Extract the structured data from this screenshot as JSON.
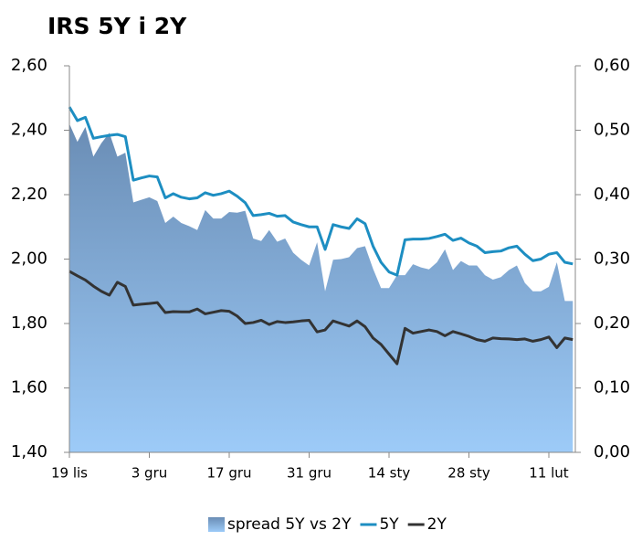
{
  "chart_data": {
    "type": "line",
    "title": "IRS 5Y i 2Y",
    "categories": [
      "19 lis",
      null,
      null,
      null,
      null,
      null,
      null,
      null,
      null,
      null,
      "3 gru",
      null,
      null,
      null,
      null,
      null,
      null,
      null,
      null,
      null,
      "17 gru",
      null,
      null,
      null,
      null,
      null,
      null,
      null,
      null,
      null,
      "31 gru",
      null,
      null,
      null,
      null,
      null,
      null,
      null,
      null,
      null,
      "14 sty",
      null,
      null,
      null,
      null,
      null,
      null,
      null,
      null,
      null,
      "28 sty",
      null,
      null,
      null,
      null,
      null,
      null,
      null,
      null,
      null,
      "11 lut",
      null,
      null,
      null
    ],
    "series": [
      {
        "name": "spread 5Y vs 2Y",
        "color": "#9dcbf8",
        "axis": "y2",
        "kind": "area",
        "values": [
          0.51,
          0.482,
          0.505,
          0.459,
          0.48,
          0.496,
          0.459,
          0.465,
          0.388,
          0.392,
          0.396,
          0.39,
          0.356,
          0.366,
          0.356,
          0.351,
          0.345,
          0.376,
          0.363,
          0.363,
          0.373,
          0.372,
          0.375,
          0.332,
          0.328,
          0.345,
          0.327,
          0.332,
          0.31,
          0.299,
          0.29,
          0.326,
          0.25,
          0.299,
          0.3,
          0.303,
          0.317,
          0.32,
          0.285,
          0.255,
          0.255,
          0.275,
          0.275,
          0.292,
          0.287,
          0.284,
          0.295,
          0.315,
          0.283,
          0.297,
          0.29,
          0.29,
          0.275,
          0.268,
          0.272,
          0.283,
          0.29,
          0.263,
          0.25,
          0.25,
          0.257,
          0.295,
          0.235,
          0.235
        ]
      },
      {
        "name": "5Y",
        "color": "#1d8ec2",
        "values": [
          2.472,
          2.43,
          2.44,
          2.375,
          2.38,
          2.384,
          2.387,
          2.38,
          2.245,
          2.252,
          2.258,
          2.255,
          2.19,
          2.203,
          2.192,
          2.187,
          2.19,
          2.206,
          2.198,
          2.203,
          2.211,
          2.195,
          2.175,
          2.135,
          2.138,
          2.142,
          2.133,
          2.135,
          2.115,
          2.107,
          2.1,
          2.1,
          2.03,
          2.107,
          2.1,
          2.095,
          2.125,
          2.11,
          2.04,
          1.99,
          1.96,
          1.95,
          2.06,
          2.062,
          2.062,
          2.064,
          2.07,
          2.077,
          2.058,
          2.065,
          2.05,
          2.04,
          2.02,
          2.023,
          2.025,
          2.035,
          2.04,
          2.015,
          1.995,
          2.0,
          2.015,
          2.02,
          1.99,
          1.985
        ]
      },
      {
        "name": "2Y",
        "color": "#333333",
        "values": [
          1.962,
          1.948,
          1.935,
          1.916,
          1.9,
          1.888,
          1.928,
          1.915,
          1.857,
          1.86,
          1.862,
          1.865,
          1.834,
          1.837,
          1.836,
          1.836,
          1.845,
          1.83,
          1.835,
          1.84,
          1.838,
          1.823,
          1.8,
          1.803,
          1.81,
          1.797,
          1.806,
          1.803,
          1.805,
          1.808,
          1.81,
          1.774,
          1.78,
          1.808,
          1.8,
          1.792,
          1.808,
          1.79,
          1.755,
          1.735,
          1.705,
          1.675,
          1.785,
          1.77,
          1.775,
          1.78,
          1.775,
          1.762,
          1.775,
          1.768,
          1.76,
          1.75,
          1.745,
          1.755,
          1.753,
          1.752,
          1.75,
          1.752,
          1.745,
          1.75,
          1.758,
          1.725,
          1.755,
          1.75
        ]
      }
    ],
    "ylim": [
      1.4,
      2.6
    ],
    "yticks": [
      {
        "value": 1.4,
        "label": "1,40"
      },
      {
        "value": 1.6,
        "label": "1,60"
      },
      {
        "value": 1.8,
        "label": "1,80"
      },
      {
        "value": 2.0,
        "label": "2,00"
      },
      {
        "value": 2.2,
        "label": "2,20"
      },
      {
        "value": 2.4,
        "label": "2,40"
      },
      {
        "value": 2.6,
        "label": "2,60"
      }
    ],
    "y2lim": [
      0,
      0.6
    ],
    "y2ticks": [
      {
        "value": 0,
        "label": "0,00"
      },
      {
        "value": 0.1,
        "label": "0,10"
      },
      {
        "value": 0.2,
        "label": "0,20"
      },
      {
        "value": 0.3,
        "label": "0,30"
      },
      {
        "value": 0.4,
        "label": "0,40"
      },
      {
        "value": 0.5,
        "label": "0,50"
      },
      {
        "value": 0.6,
        "label": "0,60"
      }
    ],
    "legend": "bottom"
  }
}
